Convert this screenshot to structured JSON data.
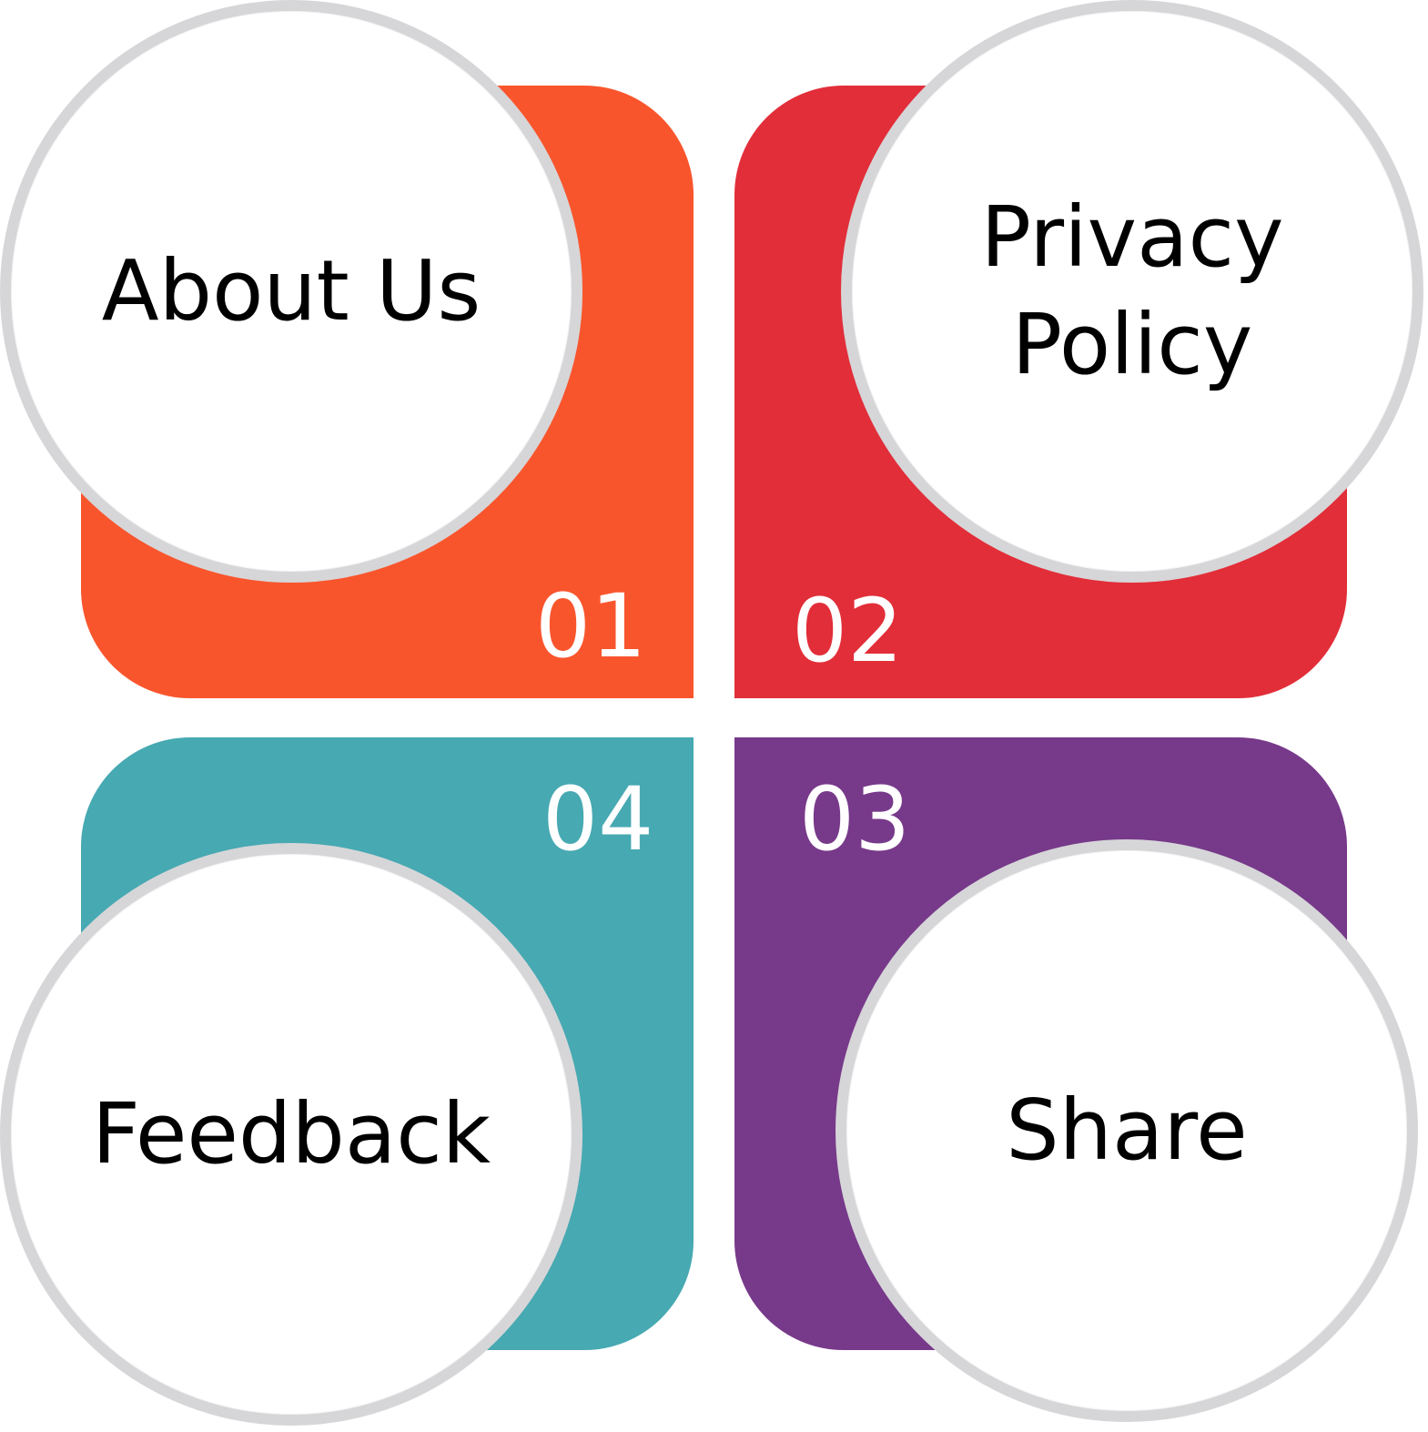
{
  "colors": {
    "panel_01": "#f9552d",
    "panel_02": "#e22e39",
    "panel_03": "#77398a",
    "panel_04": "#47a9b2",
    "circle_fill": "#ffffff",
    "circle_border": "#d6d6d8"
  },
  "items": [
    {
      "number": "01",
      "label": "About Us"
    },
    {
      "number": "02",
      "label": "Privacy\nPolicy"
    },
    {
      "number": "03",
      "label": "Share"
    },
    {
      "number": "04",
      "label": "Feedback"
    }
  ]
}
